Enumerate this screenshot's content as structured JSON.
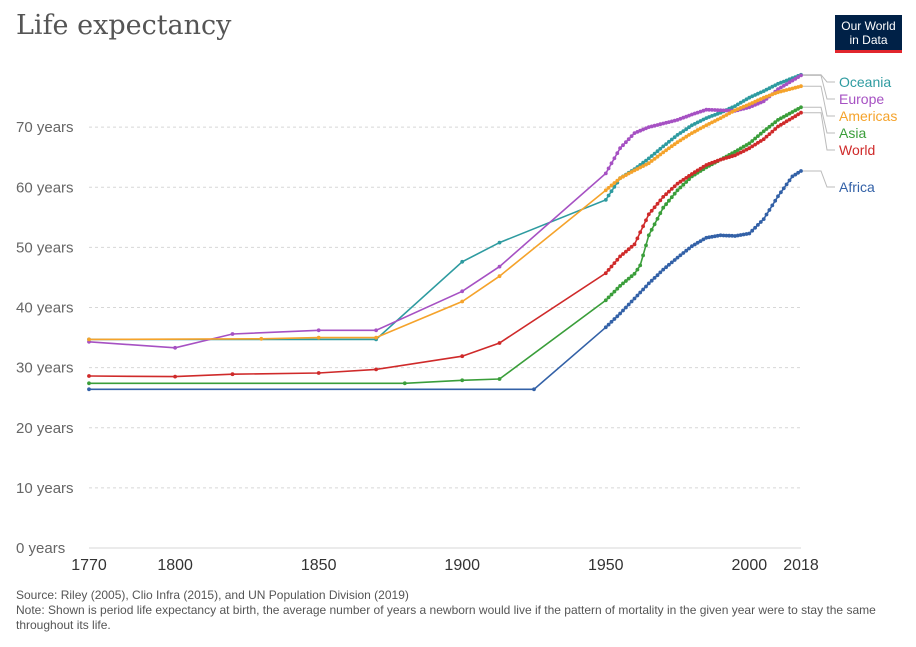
{
  "chart_title": "Life expectancy",
  "logo": {
    "line1": "Our World",
    "line2": "in Data"
  },
  "source": "Source: Riley (2005), Clio Infra (2015), and UN Population Division (2019)",
  "note": "Note: Shown is period life expectancy at birth, the average number of years a newborn would live if the pattern of mortality in the given year were to stay the same throughout its life.",
  "chart_data": {
    "type": "line",
    "title": "Life expectancy",
    "xlabel": "",
    "ylabel": "",
    "xlim": [
      1770,
      2018
    ],
    "ylim": [
      0,
      80
    ],
    "y_ticks": [
      0,
      10,
      20,
      30,
      40,
      50,
      60,
      70
    ],
    "y_tick_labels": [
      "0 years",
      "10 years",
      "20 years",
      "30 years",
      "40 years",
      "50 years",
      "60 years",
      "70 years"
    ],
    "x_ticks": [
      1770,
      1800,
      1850,
      1900,
      1950,
      2000,
      2018
    ],
    "x_tick_labels": [
      "1770",
      "1800",
      "1850",
      "1900",
      "1950",
      "2000",
      "2018"
    ],
    "grid": "horizontal dashed",
    "legend_position": "right, line ends",
    "series": [
      {
        "name": "Oceania",
        "color": "#2e9ba0",
        "points": [
          [
            1770,
            34.7
          ],
          [
            1870,
            34.7
          ],
          [
            1900,
            47.6
          ],
          [
            1913,
            50.8
          ],
          [
            1950,
            57.9
          ],
          [
            1955,
            61.5
          ],
          [
            1960,
            63.0
          ],
          [
            1965,
            64.8
          ],
          [
            1970,
            66.8
          ],
          [
            1975,
            68.7
          ],
          [
            1980,
            70.3
          ],
          [
            1985,
            71.5
          ],
          [
            1990,
            72.4
          ],
          [
            1995,
            73.5
          ],
          [
            2000,
            74.9
          ],
          [
            2005,
            76.0
          ],
          [
            2010,
            77.2
          ],
          [
            2018,
            78.7
          ]
        ]
      },
      {
        "name": "Europe",
        "color": "#a651c3",
        "points": [
          [
            1770,
            34.3
          ],
          [
            1800,
            33.3
          ],
          [
            1820,
            35.6
          ],
          [
            1850,
            36.2
          ],
          [
            1870,
            36.2
          ],
          [
            1900,
            42.7
          ],
          [
            1913,
            46.8
          ],
          [
            1950,
            62.3
          ],
          [
            1955,
            66.5
          ],
          [
            1960,
            69.0
          ],
          [
            1965,
            70.0
          ],
          [
            1970,
            70.6
          ],
          [
            1975,
            71.2
          ],
          [
            1980,
            72.1
          ],
          [
            1985,
            72.9
          ],
          [
            1990,
            72.8
          ],
          [
            1995,
            72.7
          ],
          [
            2000,
            73.3
          ],
          [
            2005,
            74.3
          ],
          [
            2010,
            76.3
          ],
          [
            2018,
            78.6
          ]
        ]
      },
      {
        "name": "Americas",
        "color": "#f5a32b",
        "points": [
          [
            1770,
            34.7
          ],
          [
            1830,
            34.8
          ],
          [
            1850,
            35.0
          ],
          [
            1870,
            35.0
          ],
          [
            1900,
            41.0
          ],
          [
            1913,
            45.2
          ],
          [
            1950,
            59.5
          ],
          [
            1955,
            61.5
          ],
          [
            1960,
            62.8
          ],
          [
            1965,
            64.0
          ],
          [
            1970,
            65.8
          ],
          [
            1975,
            67.5
          ],
          [
            1980,
            69.0
          ],
          [
            1985,
            70.3
          ],
          [
            1990,
            71.5
          ],
          [
            1995,
            72.8
          ],
          [
            2000,
            73.8
          ],
          [
            2005,
            74.9
          ],
          [
            2010,
            75.8
          ],
          [
            2018,
            76.8
          ]
        ]
      },
      {
        "name": "Asia",
        "color": "#3a9e3a",
        "points": [
          [
            1770,
            27.4
          ],
          [
            1880,
            27.4
          ],
          [
            1900,
            27.9
          ],
          [
            1913,
            28.1
          ],
          [
            1950,
            41.2
          ],
          [
            1955,
            43.6
          ],
          [
            1960,
            45.6
          ],
          [
            1962,
            47.0
          ],
          [
            1965,
            52.0
          ],
          [
            1970,
            56.6
          ],
          [
            1975,
            59.5
          ],
          [
            1980,
            61.8
          ],
          [
            1985,
            63.3
          ],
          [
            1990,
            64.6
          ],
          [
            1995,
            65.9
          ],
          [
            2000,
            67.3
          ],
          [
            2005,
            69.3
          ],
          [
            2010,
            71.2
          ],
          [
            2018,
            73.3
          ]
        ]
      },
      {
        "name": "World",
        "color": "#cf2a2a",
        "points": [
          [
            1770,
            28.6
          ],
          [
            1800,
            28.5
          ],
          [
            1820,
            28.9
          ],
          [
            1850,
            29.1
          ],
          [
            1870,
            29.7
          ],
          [
            1900,
            31.9
          ],
          [
            1913,
            34.1
          ],
          [
            1950,
            45.7
          ],
          [
            1955,
            48.5
          ],
          [
            1960,
            50.5
          ],
          [
            1965,
            55.5
          ],
          [
            1970,
            58.4
          ],
          [
            1975,
            60.6
          ],
          [
            1980,
            62.2
          ],
          [
            1985,
            63.7
          ],
          [
            1990,
            64.6
          ],
          [
            1995,
            65.3
          ],
          [
            2000,
            66.5
          ],
          [
            2005,
            68.0
          ],
          [
            2010,
            70.1
          ],
          [
            2018,
            72.4
          ]
        ]
      },
      {
        "name": "Africa",
        "color": "#3361a7",
        "points": [
          [
            1770,
            26.4
          ],
          [
            1925,
            26.4
          ],
          [
            1950,
            36.7
          ],
          [
            1955,
            39.0
          ],
          [
            1960,
            41.5
          ],
          [
            1965,
            44.0
          ],
          [
            1970,
            46.3
          ],
          [
            1975,
            48.3
          ],
          [
            1980,
            50.2
          ],
          [
            1985,
            51.6
          ],
          [
            1990,
            52.0
          ],
          [
            1995,
            51.9
          ],
          [
            2000,
            52.3
          ],
          [
            2005,
            54.7
          ],
          [
            2010,
            58.5
          ],
          [
            2015,
            61.8
          ],
          [
            2018,
            62.7
          ]
        ]
      }
    ]
  }
}
